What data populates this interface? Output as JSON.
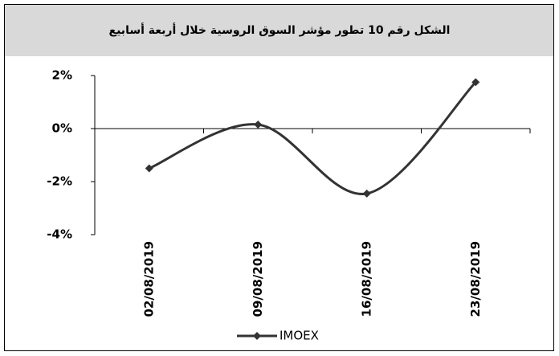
{
  "chart_data": {
    "type": "line",
    "title": "الشكل رقم 10 تطور مؤشر السوق الروسية خلال أربعة أسابيع",
    "categories": [
      "02/08/2019",
      "09/08/2019",
      "16/08/2019",
      "23/08/2019"
    ],
    "series": [
      {
        "name": "IMOEX",
        "color": "#333333",
        "values": [
          -1.5,
          0.15,
          -2.45,
          1.75
        ]
      }
    ],
    "ylim": [
      -4,
      2
    ],
    "yticks": [
      {
        "value": -4,
        "label": "-4%"
      },
      {
        "value": -2,
        "label": "-2%"
      },
      {
        "value": 0,
        "label": "0%"
      },
      {
        "value": 2,
        "label": "2%"
      }
    ],
    "smooth": true,
    "legend": "bottom"
  }
}
